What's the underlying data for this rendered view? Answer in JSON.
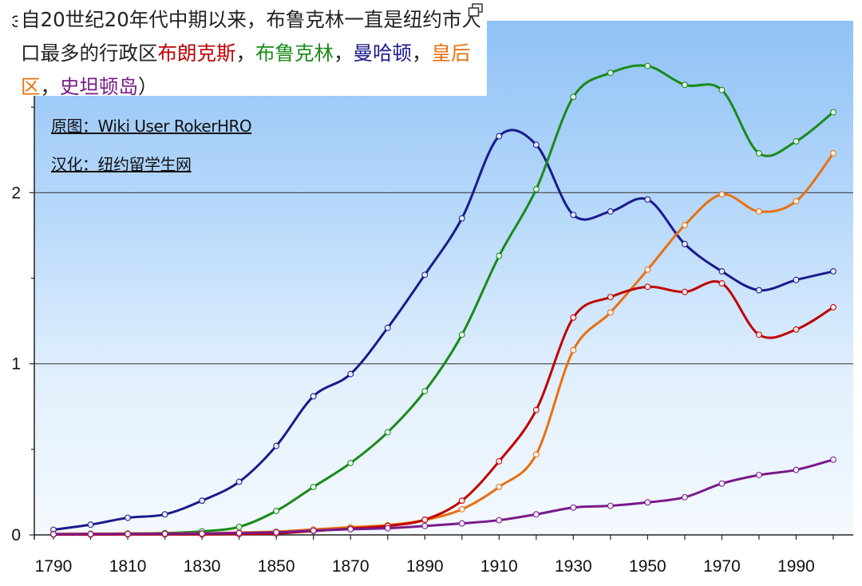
{
  "caption": {
    "part1": "自20世纪20年代中期以来，布鲁克林一直是纽约市人口最多的行政区",
    "bronx": "布朗克斯",
    "sep1": "，",
    "brooklyn": "布鲁克林",
    "sep2": "，",
    "manhattan": "曼哈顿",
    "sep3": "，",
    "queens": "皇后区",
    "sep4": "，",
    "staten": "史坦顿岛",
    "end": "）"
  },
  "credits": {
    "source": "原图：Wiki User RokerHRO",
    "translation": "汉化：纽约留学生网"
  },
  "colors": {
    "bronx": "#c00000",
    "brooklyn": "#1a8a1a",
    "manhattan": "#1a1a8c",
    "queens": "#e87010",
    "staten": "#7a1a8a"
  },
  "icons": {
    "corner": "restore-window-icon"
  },
  "chart_data": {
    "type": "line",
    "title": "",
    "xlabel": "",
    "ylabel": "",
    "xlim": [
      1780,
      2005
    ],
    "ylim": [
      0,
      3
    ],
    "x_ticks": [
      1790,
      1810,
      1830,
      1850,
      1870,
      1890,
      1910,
      1930,
      1950,
      1970,
      1990
    ],
    "y_ticks": [
      0,
      1,
      2,
      3
    ],
    "grid": true,
    "x": [
      1790,
      1800,
      1810,
      1820,
      1830,
      1840,
      1850,
      1860,
      1870,
      1880,
      1890,
      1900,
      1910,
      1920,
      1930,
      1940,
      1950,
      1960,
      1970,
      1980,
      1990,
      2000
    ],
    "series": [
      {
        "key": "manhattan",
        "values": [
          0.03,
          0.06,
          0.1,
          0.12,
          0.2,
          0.31,
          0.52,
          0.81,
          0.94,
          1.21,
          1.52,
          1.85,
          2.33,
          2.28,
          1.87,
          1.89,
          1.96,
          1.7,
          1.54,
          1.43,
          1.49,
          1.54
        ]
      },
      {
        "key": "brooklyn",
        "values": [
          0.005,
          0.006,
          0.008,
          0.011,
          0.021,
          0.047,
          0.14,
          0.28,
          0.42,
          0.6,
          0.84,
          1.17,
          1.63,
          2.02,
          2.56,
          2.7,
          2.74,
          2.63,
          2.6,
          2.23,
          2.3,
          2.47
        ]
      },
      {
        "key": "queens",
        "values": [
          0.006,
          0.007,
          0.008,
          0.009,
          0.009,
          0.014,
          0.019,
          0.032,
          0.045,
          0.057,
          0.087,
          0.15,
          0.28,
          0.47,
          1.08,
          1.3,
          1.55,
          1.81,
          1.99,
          1.89,
          1.95,
          2.23
        ]
      },
      {
        "key": "bronx",
        "values": [
          0.002,
          0.002,
          0.003,
          0.003,
          0.003,
          0.005,
          0.008,
          0.023,
          0.037,
          0.052,
          0.089,
          0.2,
          0.43,
          0.73,
          1.27,
          1.39,
          1.45,
          1.42,
          1.47,
          1.17,
          1.2,
          1.33
        ]
      },
      {
        "key": "staten",
        "values": [
          0.004,
          0.005,
          0.006,
          0.007,
          0.008,
          0.011,
          0.015,
          0.025,
          0.033,
          0.039,
          0.052,
          0.067,
          0.086,
          0.12,
          0.16,
          0.17,
          0.19,
          0.22,
          0.3,
          0.35,
          0.38,
          0.44
        ]
      }
    ]
  }
}
